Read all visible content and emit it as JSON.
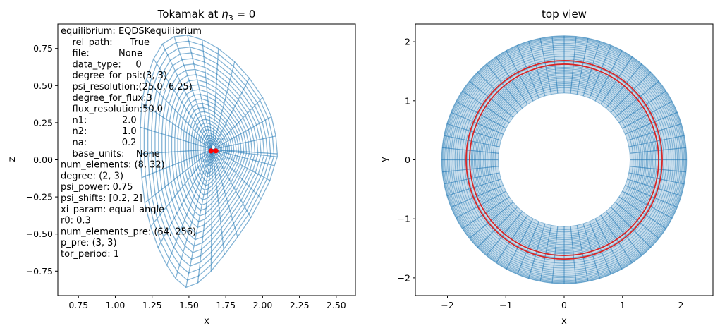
{
  "chart_data": [
    {
      "type": "line",
      "title_text": "Tokamak at ",
      "title_math": "η",
      "title_sub": "3",
      "title_rest": " = 0",
      "xlabel": "x",
      "ylabel": "z",
      "xlim": [
        0.61,
        2.63
      ],
      "ylim": [
        -0.915,
        0.915
      ],
      "xticks": [
        "0.75",
        "1.00",
        "1.25",
        "1.50",
        "1.75",
        "2.00",
        "2.25",
        "2.50"
      ],
      "xtick_values": [
        0.75,
        1.0,
        1.25,
        1.5,
        1.75,
        2.0,
        2.25,
        2.5
      ],
      "yticks": [
        "0.75",
        "0.50",
        "0.25",
        "0.00",
        "−0.25",
        "−0.50",
        "−0.75"
      ],
      "ytick_values": [
        0.75,
        0.5,
        0.25,
        0.0,
        -0.25,
        -0.5,
        -0.75
      ],
      "grid": false,
      "mesh": {
        "color": "#1f77b4",
        "center_x": 1.66,
        "center_z": 0.07,
        "num_elements": [
          8,
          32
        ],
        "outer_boundary": [
          [
            2.1,
            0.04
          ],
          [
            2.09,
            0.16
          ],
          [
            2.06,
            0.29
          ],
          [
            2.0,
            0.42
          ],
          [
            1.91,
            0.55
          ],
          [
            1.81,
            0.66
          ],
          [
            1.7,
            0.75
          ],
          [
            1.59,
            0.81
          ],
          [
            1.49,
            0.84
          ],
          [
            1.4,
            0.83
          ],
          [
            1.32,
            0.78
          ],
          [
            1.26,
            0.68
          ],
          [
            1.21,
            0.54
          ],
          [
            1.18,
            0.38
          ],
          [
            1.17,
            0.22
          ],
          [
            1.17,
            0.04
          ],
          [
            1.18,
            -0.12
          ],
          [
            1.2,
            -0.29
          ],
          [
            1.24,
            -0.45
          ],
          [
            1.29,
            -0.59
          ],
          [
            1.35,
            -0.71
          ],
          [
            1.41,
            -0.8
          ],
          [
            1.48,
            -0.86
          ],
          [
            1.56,
            -0.83
          ],
          [
            1.65,
            -0.75
          ],
          [
            1.74,
            -0.64
          ],
          [
            1.83,
            -0.52
          ],
          [
            1.92,
            -0.39
          ],
          [
            1.99,
            -0.26
          ],
          [
            2.05,
            -0.14
          ],
          [
            2.08,
            -0.04
          ],
          [
            2.1,
            0.02
          ]
        ]
      },
      "points": [
        {
          "x": 1.65,
          "z": 0.06,
          "color": "#ff0000"
        },
        {
          "x": 1.683,
          "z": 0.06,
          "color": "#ff0000"
        },
        {
          "x": 1.665,
          "z": 0.085,
          "color": "#ffffff"
        }
      ],
      "info_lines": [
        "equilibrium: EQDSKequilibrium",
        "    rel_path:      True",
        "    file:          None",
        "    data_type:     0",
        "    degree_for_psi:(3, 3)",
        "    psi_resolution:(25.0, 6.25)",
        "    degree_for_flux:3",
        "    flux_resolution:50.0",
        "    n1:            2.0",
        "    n2:            1.0",
        "    na:            0.2",
        "    base_units:    None",
        "num_elements: (8, 32)",
        "degree: (2, 3)",
        "psi_power: 0.75",
        "psi_shifts: [0.2, 2]",
        "xi_param: equal_angle",
        "r0: 0.3",
        "num_elements_pre: (64, 256)",
        "p_pre: (3, 3)",
        "tor_period: 1"
      ]
    },
    {
      "type": "line",
      "title": "top view",
      "xlabel": "x",
      "ylabel": "y",
      "xlim": [
        -2.55,
        2.55
      ],
      "ylim": [
        -2.3,
        2.3
      ],
      "xticks": [
        "−2",
        "−1",
        "0",
        "1",
        "2"
      ],
      "xtick_values": [
        -2,
        -1,
        0,
        1,
        2
      ],
      "yticks": [
        "2",
        "1",
        "0",
        "−1",
        "−2"
      ],
      "ytick_values": [
        2,
        1,
        0,
        -1,
        -2
      ],
      "grid": false,
      "annulus": {
        "inner_radius": 1.13,
        "outer_radius": 2.1,
        "mesh_color": "#1f77b4",
        "ring_color": "#d62728",
        "ring_radii": [
          1.62,
          1.68
        ],
        "num_radial_lines": 64,
        "num_circles": 33
      }
    }
  ]
}
